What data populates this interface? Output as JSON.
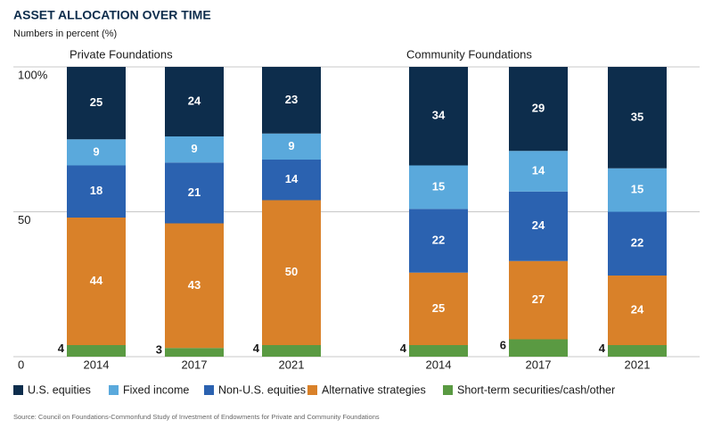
{
  "title": "ASSET ALLOCATION OVER TIME",
  "subtitle": "Numbers in percent (%)",
  "source": "Source: Council on Foundations-Commonfund Study of Investment of Endowments for Private and Community Foundations",
  "chart_data": [
    {
      "type": "bar",
      "stacked": true,
      "title": "Private Foundations",
      "categories": [
        "2014",
        "2017",
        "2021"
      ],
      "series": [
        {
          "name": "U.S. equities",
          "color": "#0d2d4c",
          "values": [
            25,
            24,
            23
          ]
        },
        {
          "name": "Fixed income",
          "color": "#5aa9dc",
          "values": [
            9,
            9,
            9
          ]
        },
        {
          "name": "Non-U.S. equities",
          "color": "#2b62b0",
          "values": [
            18,
            21,
            14
          ]
        },
        {
          "name": "Alternative strategies",
          "color": "#d98129",
          "values": [
            44,
            43,
            50
          ]
        },
        {
          "name": "Short-term securities/cash/other",
          "color": "#5a9a42",
          "values": [
            4,
            3,
            4
          ]
        }
      ],
      "ylim": [
        0,
        100
      ],
      "yticks": [
        0,
        50,
        {
          "value": 100,
          "label": "100%"
        }
      ],
      "grid": true
    },
    {
      "type": "bar",
      "stacked": true,
      "title": "Community Foundations",
      "categories": [
        "2014",
        "2017",
        "2021"
      ],
      "series": [
        {
          "color": "#0d2d4c",
          "values": [
            34,
            29,
            35
          ]
        },
        {
          "color": "#5aa9dc",
          "values": [
            15,
            14,
            15
          ]
        },
        {
          "color": "#2b62b0",
          "values": [
            22,
            24,
            22
          ]
        },
        {
          "color": "#d98129",
          "values": [
            25,
            27,
            24
          ]
        },
        {
          "color": "#5a9a42",
          "values": [
            4,
            6,
            4
          ]
        }
      ],
      "ylim": [
        0,
        100
      ]
    }
  ]
}
